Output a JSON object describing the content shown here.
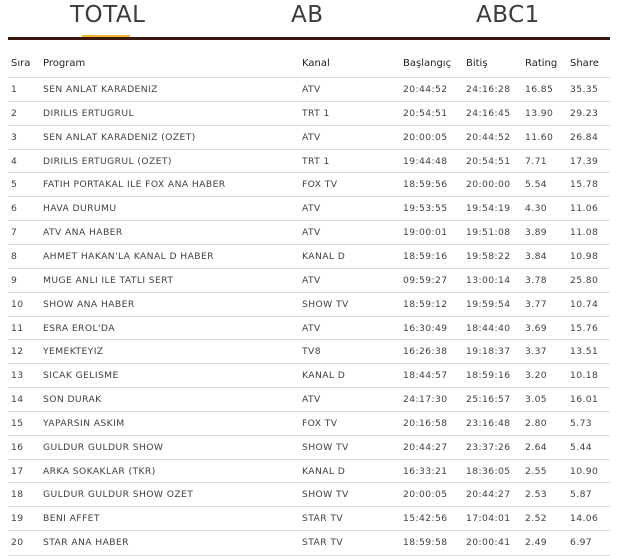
{
  "tabs": [
    {
      "label": "TOTAL",
      "active": true
    },
    {
      "label": "AB",
      "active": false
    },
    {
      "label": "ABC1",
      "active": false
    }
  ],
  "colors": {
    "accent": "#f3b62d",
    "bar": "#3b1711",
    "row_border": "#dcdcdc"
  },
  "table": {
    "columns": [
      "Sıra",
      "Program",
      "Kanal",
      "Başlangıç",
      "Bitiş",
      "Rating",
      "Share"
    ],
    "rows": [
      [
        "1",
        "SEN ANLAT KARADENIZ",
        "ATV",
        "20:44:52",
        "24:16:28",
        "16.85",
        "35.35"
      ],
      [
        "2",
        "DIRILIS ERTUGRUL",
        "TRT 1",
        "20:54:51",
        "24:16:45",
        "13.90",
        "29.23"
      ],
      [
        "3",
        "SEN ANLAT KARADENIZ (OZET)",
        "ATV",
        "20:00:05",
        "20:44:52",
        "11.60",
        "26.84"
      ],
      [
        "4",
        "DIRILIS ERTUGRUL (OZET)",
        "TRT 1",
        "19:44:48",
        "20:54:51",
        "7.71",
        "17.39"
      ],
      [
        "5",
        "FATIH PORTAKAL ILE FOX ANA HABER",
        "FOX TV",
        "18:59:56",
        "20:00:00",
        "5.54",
        "15.78"
      ],
      [
        "6",
        "HAVA DURUMU",
        "ATV",
        "19:53:55",
        "19:54:19",
        "4.30",
        "11.06"
      ],
      [
        "7",
        "ATV ANA HABER",
        "ATV",
        "19:00:01",
        "19:51:08",
        "3.89",
        "11.08"
      ],
      [
        "8",
        "AHMET HAKAN'LA KANAL D HABER",
        "KANAL D",
        "18:59:16",
        "19:58:22",
        "3.84",
        "10.98"
      ],
      [
        "9",
        "MUGE ANLI ILE TATLI SERT",
        "ATV",
        "09:59:27",
        "13:00:14",
        "3.78",
        "25.80"
      ],
      [
        "10",
        "SHOW ANA HABER",
        "SHOW TV",
        "18:59:12",
        "19:59:54",
        "3.77",
        "10.74"
      ],
      [
        "11",
        "ESRA EROL'DA",
        "ATV",
        "16:30:49",
        "18:44:40",
        "3.69",
        "15.76"
      ],
      [
        "12",
        "YEMEKTEYIZ",
        "TV8",
        "16:26:38",
        "19:18:37",
        "3.37",
        "13.51"
      ],
      [
        "13",
        "SICAK GELISME",
        "KANAL D",
        "18:44:57",
        "18:59:16",
        "3.20",
        "10.18"
      ],
      [
        "14",
        "SON DURAK",
        "ATV",
        "24:17:30",
        "25:16:57",
        "3.05",
        "16.01"
      ],
      [
        "15",
        "YAPARSIN ASKIM",
        "FOX TV",
        "20:16:58",
        "23:16:48",
        "2.80",
        "5.73"
      ],
      [
        "16",
        "GULDUR GULDUR SHOW",
        "SHOW TV",
        "20:44:27",
        "23:37:26",
        "2.64",
        "5.44"
      ],
      [
        "17",
        "ARKA SOKAKLAR (TKR)",
        "KANAL D",
        "16:33:21",
        "18:36:05",
        "2.55",
        "10.90"
      ],
      [
        "18",
        "GULDUR GULDUR SHOW OZET",
        "SHOW TV",
        "20:00:05",
        "20:44:27",
        "2.53",
        "5.87"
      ],
      [
        "19",
        "BENI AFFET",
        "STAR TV",
        "15:42:56",
        "17:04:01",
        "2.52",
        "14.06"
      ],
      [
        "20",
        "STAR ANA HABER",
        "STAR TV",
        "18:59:58",
        "20:00:41",
        "2.49",
        "6.97"
      ]
    ]
  }
}
